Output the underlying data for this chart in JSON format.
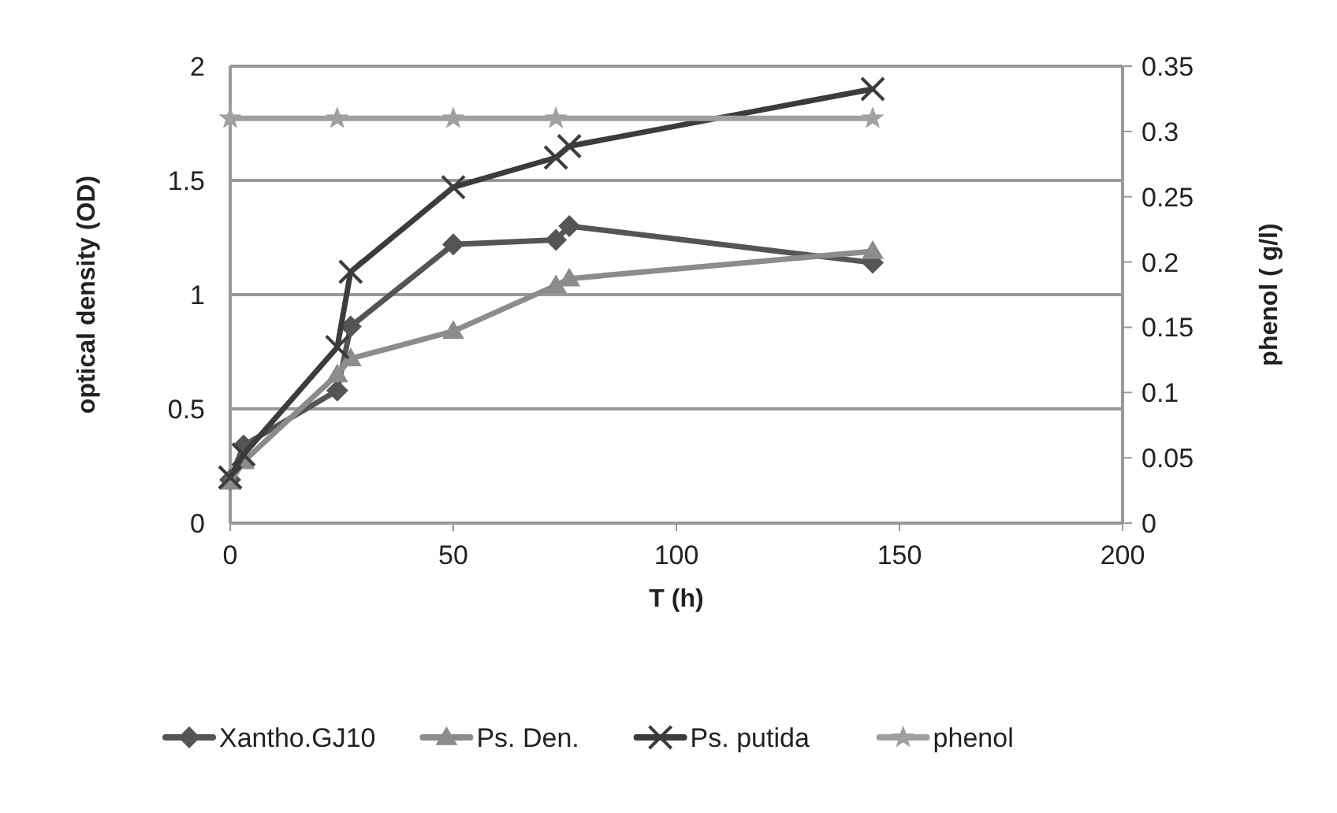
{
  "chart_data": {
    "type": "line",
    "xlabel": "T (h)",
    "ylabel": "optical density (OD)",
    "y2label": "phenol ( g/l)",
    "xlim": [
      0,
      200
    ],
    "xticks": [
      0,
      50,
      100,
      150,
      200
    ],
    "ylim": [
      0,
      2
    ],
    "yticks": [
      0,
      0.5,
      1,
      1.5,
      2
    ],
    "y2lim": [
      0,
      0.35
    ],
    "y2ticks": [
      0,
      0.05,
      0.1,
      0.15,
      0.2,
      0.25,
      0.3,
      0.35
    ],
    "grid": "y",
    "legend": "bottom",
    "line_style": "solid",
    "series": [
      {
        "name": "Xantho.GJ10",
        "color": "#555555",
        "marker": "diamond",
        "x": [
          0,
          3,
          24,
          27,
          50,
          73,
          76,
          144
        ],
        "values": [
          0.19,
          0.34,
          0.58,
          0.86,
          1.22,
          1.24,
          1.3,
          1.14
        ]
      },
      {
        "name": "Ps. Den.",
        "color": "#8c8c8c",
        "marker": "triangle",
        "x": [
          0,
          3,
          24,
          27,
          50,
          73,
          76,
          144
        ],
        "values": [
          0.18,
          0.27,
          0.65,
          0.72,
          0.84,
          1.04,
          1.07,
          1.19
        ]
      },
      {
        "name": "Ps. putida",
        "color": "#3c3c3c",
        "marker": "cross",
        "x": [
          0,
          3,
          24,
          27,
          50,
          73,
          76,
          144
        ],
        "values": [
          0.2,
          0.3,
          0.77,
          1.1,
          1.47,
          1.6,
          1.65,
          1.9
        ]
      },
      {
        "name": "phenol",
        "color": "#a0a0a0",
        "marker": "star",
        "axis": "y2",
        "x": [
          0,
          24,
          50,
          73,
          144
        ],
        "values": [
          0.31,
          0.31,
          0.31,
          0.31,
          0.31
        ]
      }
    ]
  }
}
